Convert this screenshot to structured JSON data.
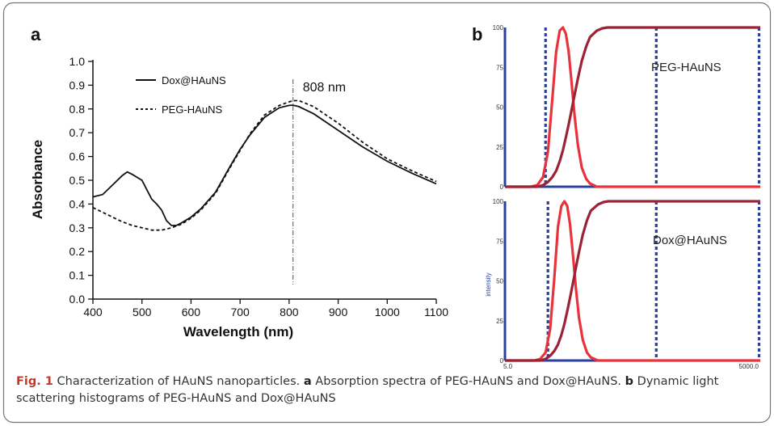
{
  "panels": {
    "a": "a",
    "b": "b"
  },
  "chart_data": [
    {
      "type": "line",
      "xlabel": "Wavelength (nm)",
      "ylabel": "Absorbance",
      "xlim": [
        400,
        1100
      ],
      "ylim": [
        0.0,
        1.0
      ],
      "x_ticks": [
        "400",
        "500",
        "600",
        "700",
        "800",
        "900",
        "1000",
        "1100"
      ],
      "y_ticks": [
        "0.0",
        "0.1",
        "0.2",
        "0.3",
        "0.4",
        "0.5",
        "0.6",
        "0.7",
        "0.8",
        "0.9",
        "1.0"
      ],
      "annotation": {
        "text": "808 nm",
        "x": 808
      },
      "legend_placement": "top-left",
      "series": [
        {
          "name": "Dox@HAuNS",
          "style": "solid",
          "x": [
            400,
            420,
            440,
            460,
            470,
            480,
            500,
            510,
            520,
            530,
            540,
            550,
            560,
            570,
            580,
            600,
            620,
            650,
            680,
            700,
            720,
            750,
            780,
            800,
            808,
            820,
            850,
            900,
            950,
            1000,
            1050,
            1100
          ],
          "y": [
            0.43,
            0.44,
            0.48,
            0.52,
            0.535,
            0.525,
            0.5,
            0.46,
            0.42,
            0.4,
            0.375,
            0.33,
            0.31,
            0.31,
            0.32,
            0.345,
            0.38,
            0.45,
            0.56,
            0.63,
            0.69,
            0.765,
            0.805,
            0.815,
            0.816,
            0.81,
            0.78,
            0.71,
            0.64,
            0.58,
            0.53,
            0.485
          ]
        },
        {
          "name": "PEG-HAuNS",
          "style": "dashed",
          "x": [
            400,
            420,
            440,
            460,
            480,
            500,
            520,
            540,
            560,
            580,
            600,
            620,
            650,
            680,
            700,
            720,
            750,
            780,
            800,
            808,
            820,
            850,
            900,
            950,
            1000,
            1050,
            1100
          ],
          "y": [
            0.385,
            0.365,
            0.345,
            0.325,
            0.31,
            0.3,
            0.29,
            0.29,
            0.3,
            0.315,
            0.34,
            0.375,
            0.445,
            0.555,
            0.625,
            0.695,
            0.775,
            0.815,
            0.83,
            0.835,
            0.835,
            0.81,
            0.74,
            0.66,
            0.59,
            0.54,
            0.495
          ]
        }
      ]
    },
    {
      "type": "line",
      "label": "PEG-HAuNS",
      "x_scale": "log",
      "xlim": [
        5.0,
        5000.0
      ],
      "ylim": [
        0,
        100
      ],
      "y_ticks": [
        "0",
        "25",
        "50",
        "75",
        "100"
      ],
      "markers_x": [
        15,
        300,
        5000
      ],
      "series": [
        {
          "role": "distribution",
          "color": "#e8333c",
          "x": [
            5,
            10,
            12,
            14,
            16,
            18,
            20,
            22,
            24,
            26,
            28,
            30,
            33,
            36,
            40,
            45,
            50,
            55,
            60,
            70,
            5000
          ],
          "y": [
            0,
            0,
            1,
            6,
            22,
            55,
            85,
            98,
            100,
            96,
            85,
            68,
            44,
            26,
            12,
            5,
            2,
            1,
            0,
            0,
            0
          ]
        },
        {
          "role": "cumulative",
          "color": "#9b2335",
          "x": [
            5,
            12,
            14,
            16,
            18,
            20,
            22,
            24,
            26,
            28,
            30,
            33,
            36,
            40,
            45,
            50,
            60,
            70,
            80,
            100,
            5000
          ],
          "y": [
            0,
            0,
            1,
            3,
            6,
            10,
            16,
            23,
            31,
            39,
            47,
            58,
            68,
            79,
            88,
            94,
            98,
            99.5,
            100,
            100,
            100
          ]
        }
      ]
    },
    {
      "type": "line",
      "label": "Dox@HAuNS",
      "ylabel": "intensity",
      "x_scale": "log",
      "xlim": [
        5.0,
        5000.0
      ],
      "ylim": [
        0,
        100
      ],
      "x_ticks": [
        "5.0",
        "5000.0"
      ],
      "y_ticks": [
        "0",
        "25",
        "50",
        "75",
        "100"
      ],
      "markers_x": [
        16,
        300,
        5000
      ],
      "series": [
        {
          "role": "distribution",
          "color": "#e8333c",
          "x": [
            5,
            11,
            13,
            15,
            17,
            19,
            21,
            23,
            25,
            27,
            29,
            31,
            34,
            37,
            41,
            46,
            51,
            56,
            62,
            72,
            5000
          ],
          "y": [
            0,
            0,
            1,
            5,
            20,
            52,
            84,
            97,
            100,
            97,
            86,
            70,
            46,
            27,
            13,
            5,
            2,
            1,
            0,
            0,
            0
          ]
        },
        {
          "role": "cumulative",
          "color": "#9b2335",
          "x": [
            5,
            13,
            15,
            17,
            19,
            21,
            23,
            25,
            27,
            29,
            31,
            34,
            37,
            41,
            46,
            51,
            62,
            72,
            82,
            100,
            5000
          ],
          "y": [
            0,
            0,
            1,
            3,
            6,
            10,
            16,
            23,
            31,
            39,
            47,
            58,
            68,
            79,
            88,
            94,
            98,
            99.5,
            100,
            100,
            100
          ]
        }
      ]
    }
  ],
  "caption": {
    "fig_label": "Fig. 1",
    "text1": "  Characterization of HAuNS nanoparticles. ",
    "a": "a",
    "text2": " Absorption spectra of PEG-HAuNS and Dox@HAuNS. ",
    "b": "b",
    "text3": " Dynamic light scattering histograms of PEG-HAuNS and Dox@HAuNS"
  },
  "colors": {
    "frame": "#666666",
    "dls_axis": "#2a3f9e",
    "marker": "#2a3f9e"
  }
}
